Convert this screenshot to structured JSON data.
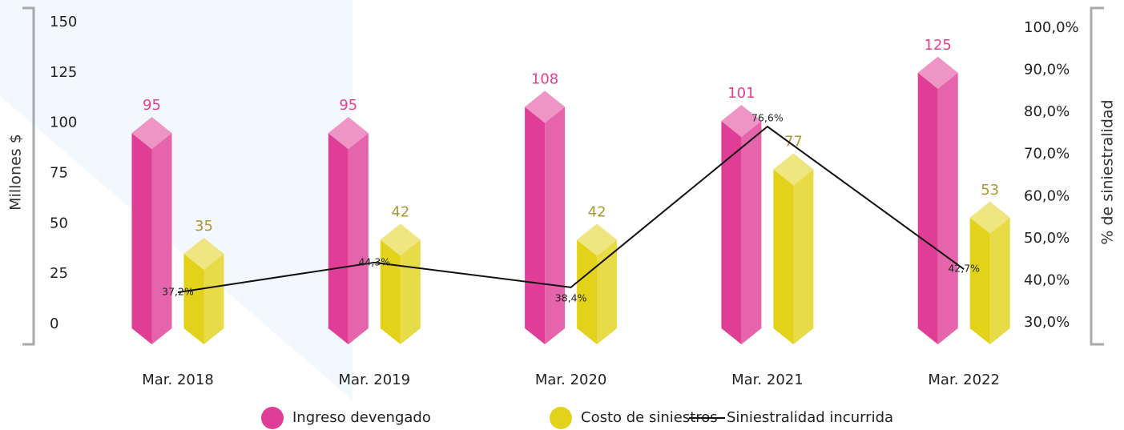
{
  "chart_data": {
    "type": "bar",
    "categories": [
      "Mar. 2018",
      "Mar. 2019",
      "Mar. 2020",
      "Mar. 2021",
      "Mar. 2022"
    ],
    "ylabel": "Millones $",
    "y2label": "% de siniestralidad",
    "ylim": [
      0,
      150
    ],
    "yticks": [
      0,
      25,
      50,
      75,
      100,
      125,
      150
    ],
    "y2lim": [
      30,
      100
    ],
    "y2ticks": [
      {
        "value": 30,
        "label": "30,0%"
      },
      {
        "value": 40,
        "label": "40,0%"
      },
      {
        "value": 50,
        "label": "50,0%"
      },
      {
        "value": 60,
        "label": "60,0%"
      },
      {
        "value": 70,
        "label": "70,0%"
      },
      {
        "value": 80,
        "label": "80,0%"
      },
      {
        "value": 90,
        "label": "90,0%"
      },
      {
        "value": 100,
        "label": "100,0%"
      }
    ],
    "series": [
      {
        "name": "Ingreso devengado",
        "type": "bar",
        "color": "#e03e96",
        "label_color": "#e04090",
        "values": [
          95,
          95,
          108,
          101,
          125
        ]
      },
      {
        "name": "Costo de siniestros",
        "type": "bar",
        "color": "#e2d21a",
        "label_color": "#a89a30",
        "values": [
          35,
          42,
          42,
          77,
          53
        ]
      },
      {
        "name": "Siniestralidad incurrida",
        "type": "line",
        "axis": "y2",
        "color": "#111111",
        "values": [
          37.2,
          44.3,
          38.4,
          76.6,
          42.7
        ],
        "value_labels": [
          "37,2%",
          "44,3%",
          "38,4%",
          "76,6%",
          "42,7%"
        ]
      }
    ]
  }
}
